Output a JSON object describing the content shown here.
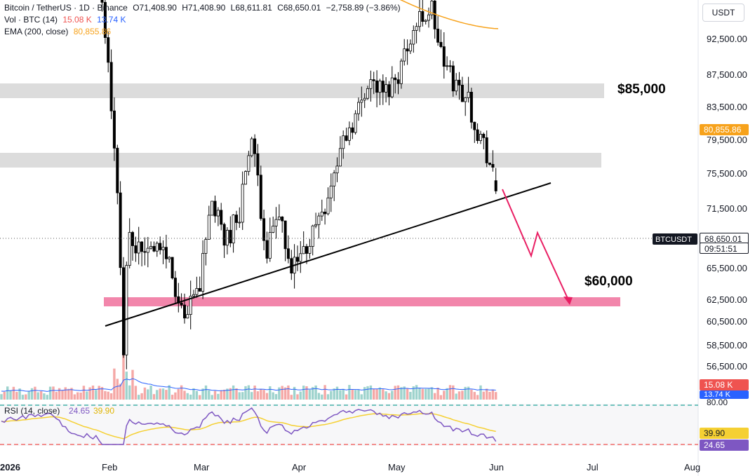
{
  "header": {
    "symbol": "Bitcoin / TetherUS · 1D · Binance",
    "open": "O71,408.90",
    "high": "H71,408.90",
    "low": "L68,611.81",
    "close": "C68,650.01",
    "change": "−2,758.89 (−3.86%)",
    "vol_label": "Vol · BTC (14)",
    "vol_value1": "15.08 K",
    "vol_value2": "13.74 K",
    "ema_label": "EMA (200, close)",
    "ema_value": "80,855.86",
    "currency": "USDT"
  },
  "colors": {
    "up": "#26a69a",
    "down": "#ef5350",
    "ema": "#f7a21b",
    "zone": "#dcdcdc",
    "support": "#f286ab",
    "arrow": "#e91e63",
    "vol_ma": "#2962ff",
    "rsi": "#7e57c2",
    "rsi_ma": "#f5d033"
  },
  "annotations": {
    "resistance_label": "$85,000",
    "target_label": "$60,000",
    "ticker_tag": "BTCUSDT",
    "last_price": "68,650.01",
    "countdown": "09:51:51",
    "ema_tag": "80,855.86"
  },
  "rsi_panel": {
    "label": "RSI (14, close)",
    "value": "24.65",
    "ma_value": "39.90",
    "upper_level": "80.00"
  },
  "chart_data": {
    "type": "candlestick",
    "y_ticks": [
      "92,500.00",
      "87,500.00",
      "83,500.00",
      "79,500.00",
      "75,500.00",
      "71,500.00",
      "65,500.00",
      "62,500.00",
      "60,500.00",
      "58,500.00",
      "56,500.00"
    ],
    "x_ticks": [
      "2026",
      "Feb",
      "Mar",
      "Apr",
      "May",
      "Jun",
      "Jul",
      "Aug"
    ],
    "resistance_zones": [
      [
        84400,
        86300
      ],
      [
        76300,
        78300
      ]
    ],
    "support_zone": [
      62000,
      63200
    ],
    "trendline": {
      "from": [
        "2026-02-01",
        60200
      ],
      "to": [
        "2026-06-27",
        74500
      ]
    },
    "ema200": {
      "start": 95000,
      "end": 80855.86
    },
    "last": {
      "open": 71408.9,
      "high": 71408.9,
      "low": 68611.81,
      "close": 68650.01
    },
    "volume_last": [
      "15.08 K",
      "13.74 K"
    ],
    "rsi_last": [
      24.65,
      39.9
    ]
  }
}
